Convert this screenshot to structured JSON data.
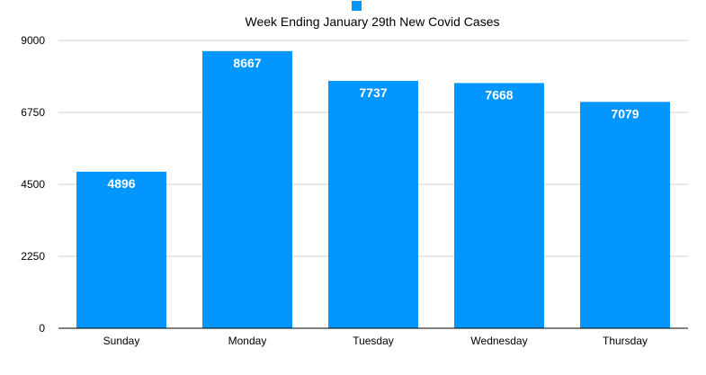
{
  "chart_data": {
    "type": "bar",
    "title": "Week Ending January 29th New Covid Cases",
    "categories": [
      "Sunday",
      "Monday",
      "Tuesday",
      "Wednesday",
      "Thursday"
    ],
    "values": [
      4896,
      8667,
      7737,
      7668,
      7079
    ],
    "ylim": [
      0,
      9000
    ],
    "yticks": [
      0,
      2250,
      4500,
      6750,
      9000
    ],
    "grid": true,
    "legend": "top-center",
    "bar_color": "#0396FF"
  }
}
